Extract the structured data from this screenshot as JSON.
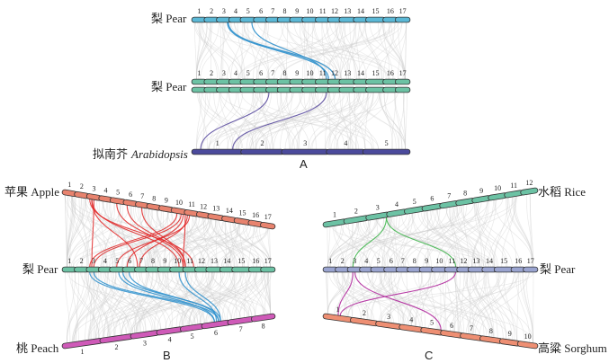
{
  "figure": {
    "panels": [
      {
        "letter": "A",
        "tracks": [
          {
            "label": "梨 Pear",
            "color": "#5bb8d6",
            "numbers": [
              "1",
              "2",
              "3",
              "4",
              "5",
              "6",
              "7",
              "8",
              "9",
              "10",
              "11",
              "12",
              "13",
              "14",
              "15",
              "16",
              "17"
            ]
          },
          {
            "label": "梨 Pear",
            "color": "#6cc2a4",
            "numbers": [
              "1",
              "2",
              "3",
              "4",
              "5",
              "6",
              "7",
              "8",
              "9",
              "10",
              "11",
              "12",
              "13",
              "14",
              "15",
              "16",
              "17"
            ]
          },
          {
            "label_cn": "拟南芥",
            "label_en": "Arabidopsis",
            "color": "#4b4a9c",
            "numbers": [
              "1",
              "2",
              "3",
              "4",
              "5"
            ]
          }
        ]
      },
      {
        "letter": "B",
        "tracks": [
          {
            "label": "苹果 Apple",
            "color": "#e8836e",
            "numbers": [
              "1",
              "2",
              "3",
              "4",
              "5",
              "6",
              "7",
              "8",
              "9",
              "10",
              "11",
              "12",
              "13",
              "14",
              "15",
              "16",
              "17"
            ]
          },
          {
            "label": "梨 Pear",
            "color": "#6cc2a4",
            "numbers": [
              "1",
              "2",
              "3",
              "4",
              "5",
              "6",
              "7",
              "8",
              "9",
              "10",
              "11",
              "12",
              "13",
              "14",
              "15",
              "16",
              "17"
            ]
          },
          {
            "label": "桃 Peach",
            "color": "#cf5ab8",
            "numbers": [
              "1",
              "2",
              "3",
              "4",
              "5",
              "6",
              "7",
              "8"
            ]
          }
        ]
      },
      {
        "letter": "C",
        "tracks": [
          {
            "label": "水稻 Rice",
            "color": "#6cc2a4",
            "numbers": [
              "1",
              "2",
              "3",
              "4",
              "5",
              "6",
              "7",
              "8",
              "9",
              "10",
              "11",
              "12"
            ]
          },
          {
            "label": "梨 Pear",
            "color": "#9aa4d0",
            "numbers": [
              "1",
              "2",
              "3",
              "4",
              "5",
              "6",
              "7",
              "8",
              "9",
              "10",
              "11",
              "12",
              "13",
              "14",
              "15",
              "16",
              "17"
            ]
          },
          {
            "label": "高粱 Sorghum",
            "color": "#ee8f73",
            "numbers": [
              "1",
              "2",
              "3",
              "4",
              "5",
              "6",
              "7",
              "8",
              "9",
              "10"
            ]
          }
        ]
      }
    ],
    "highlight_colors": {
      "blue": "#2b8fcc",
      "purple": "#5a4ba0",
      "red": "#e02424",
      "green": "#3db54a",
      "magenta": "#b0289c",
      "grey": "#cfcfcf"
    }
  }
}
